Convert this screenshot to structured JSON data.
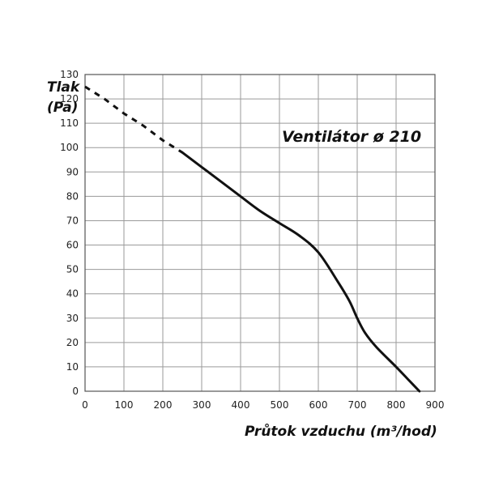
{
  "chart_data": {
    "type": "line",
    "title": "Ventilátor ø 210",
    "xlabel": "Průtok vzduchu (m³/hod)",
    "ylabel_line1": "Tlak",
    "ylabel_line2": "(Pa)",
    "xlim": [
      0,
      900
    ],
    "ylim": [
      0,
      130
    ],
    "x_ticks": [
      0,
      100,
      200,
      300,
      400,
      500,
      600,
      700,
      800,
      900
    ],
    "y_ticks": [
      0,
      10,
      20,
      30,
      40,
      50,
      60,
      70,
      80,
      90,
      100,
      110,
      120,
      130
    ],
    "grid": true,
    "series": [
      {
        "style": "dashed",
        "x": [
          0,
          50,
          100,
          150,
          200,
          250
        ],
        "y": [
          125,
          120,
          114,
          109,
          103,
          98
        ]
      },
      {
        "style": "solid",
        "x": [
          250,
          300,
          350,
          400,
          450,
          500,
          550,
          600,
          650,
          680,
          700,
          720,
          750,
          800,
          830,
          860
        ],
        "y": [
          98,
          92,
          86,
          80,
          74,
          69,
          64,
          57,
          45,
          37,
          30,
          24,
          18,
          10,
          5,
          0
        ]
      }
    ]
  }
}
